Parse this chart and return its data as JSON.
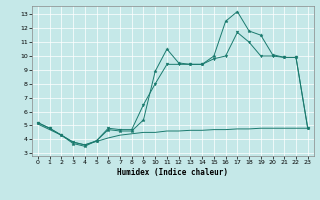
{
  "xlabel": "Humidex (Indice chaleur)",
  "xlim": [
    -0.5,
    23.5
  ],
  "ylim": [
    2.8,
    13.6
  ],
  "yticks": [
    3,
    4,
    5,
    6,
    7,
    8,
    9,
    10,
    11,
    12,
    13
  ],
  "xticks": [
    0,
    1,
    2,
    3,
    4,
    5,
    6,
    7,
    8,
    9,
    10,
    11,
    12,
    13,
    14,
    15,
    16,
    17,
    18,
    19,
    20,
    21,
    22,
    23
  ],
  "bg_color": "#c5e8e8",
  "line_color": "#1a7a6e",
  "grid_color": "#ffffff",
  "series1_x": [
    0,
    1,
    2,
    3,
    4,
    5,
    6,
    7,
    8,
    9,
    10,
    11,
    12,
    13,
    14,
    15,
    16,
    17,
    18,
    19,
    20,
    21,
    22,
    23
  ],
  "series1_y": [
    5.2,
    4.8,
    4.3,
    3.7,
    3.5,
    3.9,
    4.7,
    4.6,
    4.6,
    5.4,
    8.9,
    10.5,
    9.5,
    9.4,
    9.4,
    10.0,
    12.5,
    13.2,
    11.8,
    11.5,
    10.1,
    9.9,
    9.9,
    4.8
  ],
  "series2_x": [
    0,
    1,
    2,
    3,
    4,
    5,
    6,
    7,
    8,
    9,
    10,
    11,
    12,
    13,
    14,
    15,
    16,
    17,
    18,
    19,
    20,
    21,
    22,
    23
  ],
  "series2_y": [
    5.2,
    4.8,
    4.3,
    3.8,
    3.6,
    3.9,
    4.8,
    4.7,
    4.7,
    6.5,
    8.0,
    9.4,
    9.4,
    9.4,
    9.4,
    9.8,
    10.0,
    11.7,
    11.0,
    10.0,
    10.0,
    9.9,
    9.9,
    4.8
  ],
  "series3_x": [
    0,
    1,
    2,
    3,
    4,
    5,
    6,
    7,
    8,
    9,
    10,
    11,
    12,
    13,
    14,
    15,
    16,
    17,
    18,
    19,
    20,
    21,
    22,
    23
  ],
  "series3_y": [
    5.1,
    4.7,
    4.3,
    3.8,
    3.6,
    3.85,
    4.1,
    4.3,
    4.4,
    4.5,
    4.5,
    4.6,
    4.6,
    4.65,
    4.65,
    4.7,
    4.7,
    4.75,
    4.75,
    4.8,
    4.8,
    4.8,
    4.8,
    4.8
  ]
}
